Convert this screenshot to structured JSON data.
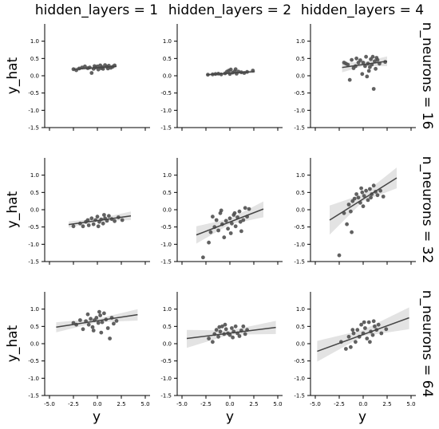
{
  "chart_data": {
    "type": "scatter",
    "layout": "facet-grid",
    "x_label": "y",
    "y_label": "y_hat",
    "column_titles": [
      "hidden_layers = 1",
      "hidden_layers = 2",
      "hidden_layers = 4"
    ],
    "row_titles": [
      "n_neurons = 16",
      "n_neurons = 32",
      "n_neurons = 64"
    ],
    "xlim": [
      -5.5,
      5.5
    ],
    "ylim": [
      -1.5,
      1.5
    ],
    "x_ticks": [
      "-5.0",
      "-2.5",
      "0.0",
      "2.5",
      "5.0"
    ],
    "y_ticks": [
      "-1.5",
      "-1.0",
      "-0.5",
      "0.0",
      "0.5",
      "1.0"
    ],
    "point_color": "#505050",
    "line_color": "#444444",
    "band_color": "#e3e3e3",
    "grid": false,
    "panels": [
      {
        "row": 0,
        "col": 0,
        "regression": {
          "x": [
            -2.5,
            2.0
          ],
          "y": [
            0.19,
            0.27
          ]
        },
        "ci": {
          "x": [
            -2.5,
            0.0,
            2.0
          ],
          "lo": [
            0.14,
            0.21,
            0.22
          ],
          "hi": [
            0.25,
            0.25,
            0.32
          ]
        },
        "points": [
          [
            -2.5,
            0.19
          ],
          [
            -2.2,
            0.16
          ],
          [
            -1.6,
            0.24
          ],
          [
            -1.3,
            0.27
          ],
          [
            -1.0,
            0.22
          ],
          [
            -0.8,
            0.24
          ],
          [
            -0.6,
            0.08
          ],
          [
            -0.4,
            0.2
          ],
          [
            -0.2,
            0.24
          ],
          [
            0.0,
            0.27
          ],
          [
            0.1,
            0.18
          ],
          [
            0.3,
            0.3
          ],
          [
            0.5,
            0.25
          ],
          [
            0.6,
            0.2
          ],
          [
            0.8,
            0.31
          ],
          [
            1.0,
            0.26
          ],
          [
            1.2,
            0.29
          ],
          [
            1.4,
            0.23
          ],
          [
            1.6,
            0.26
          ],
          [
            1.8,
            0.3
          ],
          [
            -1.9,
            0.21
          ],
          [
            0.4,
            0.22
          ],
          [
            -0.3,
            0.28
          ],
          [
            1.1,
            0.21
          ]
        ]
      },
      {
        "row": 0,
        "col": 1,
        "regression": {
          "x": [
            -2.4,
            2.6
          ],
          "y": [
            0.03,
            0.12
          ]
        },
        "ci": {
          "x": [
            -2.4,
            0.0,
            2.6
          ],
          "lo": [
            0.0,
            0.05,
            0.07
          ],
          "hi": [
            0.07,
            0.09,
            0.17
          ]
        },
        "points": [
          [
            -2.3,
            0.03
          ],
          [
            -1.8,
            0.04
          ],
          [
            -1.2,
            0.06
          ],
          [
            -0.9,
            0.04
          ],
          [
            -0.5,
            0.07
          ],
          [
            -0.3,
            0.12
          ],
          [
            -0.1,
            0.15
          ],
          [
            0.1,
            0.18
          ],
          [
            0.3,
            0.09
          ],
          [
            0.5,
            0.13
          ],
          [
            0.7,
            0.06
          ],
          [
            0.9,
            0.12
          ],
          [
            1.2,
            0.1
          ],
          [
            1.5,
            0.08
          ],
          [
            1.8,
            0.11
          ],
          [
            2.4,
            0.15
          ],
          [
            0.0,
            0.05
          ],
          [
            0.6,
            0.19
          ],
          [
            -1.5,
            0.05
          ]
        ]
      },
      {
        "row": 0,
        "col": 2,
        "regression": {
          "x": [
            -2.2,
            2.5
          ],
          "y": [
            0.24,
            0.42
          ]
        },
        "ci": {
          "x": [
            -2.2,
            0.0,
            2.5
          ],
          "lo": [
            0.1,
            0.28,
            0.28
          ],
          "hi": [
            0.38,
            0.4,
            0.56
          ]
        },
        "points": [
          [
            -2.0,
            0.38
          ],
          [
            -1.6,
            0.32
          ],
          [
            -1.4,
            -0.12
          ],
          [
            -1.2,
            0.46
          ],
          [
            -1.0,
            0.22
          ],
          [
            -0.8,
            0.28
          ],
          [
            -0.5,
            0.38
          ],
          [
            -0.3,
            0.45
          ],
          [
            -0.1,
            0.05
          ],
          [
            0.0,
            0.38
          ],
          [
            0.2,
            0.28
          ],
          [
            0.3,
            0.55
          ],
          [
            0.5,
            0.35
          ],
          [
            0.6,
            0.14
          ],
          [
            0.8,
            0.48
          ],
          [
            0.9,
            0.32
          ],
          [
            1.0,
            0.55
          ],
          [
            1.1,
            -0.38
          ],
          [
            1.2,
            0.42
          ],
          [
            1.3,
            0.2
          ],
          [
            1.5,
            0.46
          ],
          [
            1.7,
            0.35
          ],
          [
            0.4,
            -0.02
          ],
          [
            -0.7,
            0.5
          ],
          [
            0.7,
            0.25
          ],
          [
            1.4,
            0.52
          ],
          [
            -1.8,
            0.35
          ],
          [
            2.3,
            0.4
          ]
        ]
      },
      {
        "row": 1,
        "col": 0,
        "regression": {
          "x": [
            -3.0,
            3.5
          ],
          "y": [
            -0.43,
            -0.18
          ]
        },
        "ci": {
          "x": [
            -3.0,
            0.0,
            3.5
          ],
          "lo": [
            -0.52,
            -0.34,
            -0.3
          ],
          "hi": [
            -0.34,
            -0.26,
            -0.05
          ]
        },
        "points": [
          [
            -2.5,
            -0.48
          ],
          [
            -1.8,
            -0.4
          ],
          [
            -1.5,
            -0.48
          ],
          [
            -1.2,
            -0.35
          ],
          [
            -0.9,
            -0.45
          ],
          [
            -0.6,
            -0.25
          ],
          [
            -0.4,
            -0.42
          ],
          [
            -0.2,
            -0.3
          ],
          [
            0.0,
            -0.2
          ],
          [
            0.2,
            -0.35
          ],
          [
            0.4,
            -0.28
          ],
          [
            0.6,
            -0.4
          ],
          [
            0.8,
            -0.25
          ],
          [
            1.0,
            -0.32
          ],
          [
            1.2,
            -0.18
          ],
          [
            1.5,
            -0.27
          ],
          [
            1.8,
            -0.33
          ],
          [
            2.2,
            -0.22
          ],
          [
            2.6,
            -0.3
          ],
          [
            -1.0,
            -0.3
          ],
          [
            0.1,
            -0.48
          ],
          [
            0.7,
            -0.15
          ]
        ]
      },
      {
        "row": 1,
        "col": 1,
        "regression": {
          "x": [
            -3.5,
            3.5
          ],
          "y": [
            -0.73,
            0.02
          ]
        },
        "ci": {
          "x": [
            -3.5,
            0.0,
            3.5
          ],
          "lo": [
            -0.98,
            -0.42,
            -0.22
          ],
          "hi": [
            -0.48,
            -0.26,
            0.24
          ]
        },
        "points": [
          [
            -2.8,
            -1.38
          ],
          [
            -2.0,
            -0.65
          ],
          [
            -1.8,
            -0.2
          ],
          [
            -1.6,
            -0.5
          ],
          [
            -1.4,
            -0.3
          ],
          [
            -1.2,
            -0.6
          ],
          [
            -1.0,
            -0.1
          ],
          [
            -0.8,
            -0.42
          ],
          [
            -0.6,
            -0.8
          ],
          [
            -0.4,
            -0.32
          ],
          [
            -0.2,
            -0.55
          ],
          [
            0.0,
            -0.25
          ],
          [
            0.2,
            -0.4
          ],
          [
            0.4,
            -0.15
          ],
          [
            0.6,
            -0.48
          ],
          [
            0.8,
            -0.22
          ],
          [
            1.0,
            -0.05
          ],
          [
            1.2,
            -0.62
          ],
          [
            1.4,
            -0.3
          ],
          [
            1.6,
            0.05
          ],
          [
            1.8,
            -0.2
          ],
          [
            2.0,
            0.02
          ],
          [
            -2.2,
            -0.95
          ],
          [
            0.1,
            -0.68
          ],
          [
            -0.9,
            -0.02
          ],
          [
            1.1,
            -0.35
          ],
          [
            0.5,
            -0.1
          ]
        ]
      },
      {
        "row": 1,
        "col": 2,
        "regression": {
          "x": [
            -3.5,
            3.5
          ],
          "y": [
            -0.3,
            0.92
          ]
        },
        "ci": {
          "x": [
            -3.5,
            0.0,
            3.5
          ],
          "lo": [
            -0.72,
            0.25,
            0.62
          ],
          "hi": [
            0.12,
            0.45,
            1.22
          ]
        },
        "points": [
          [
            -2.5,
            -1.32
          ],
          [
            -2.0,
            -0.1
          ],
          [
            -1.7,
            -0.42
          ],
          [
            -1.5,
            0.15
          ],
          [
            -1.3,
            -0.05
          ],
          [
            -1.1,
            0.25
          ],
          [
            -0.9,
            0.32
          ],
          [
            -0.7,
            0.45
          ],
          [
            -0.5,
            0.35
          ],
          [
            -0.3,
            0.2
          ],
          [
            -0.1,
            0.5
          ],
          [
            0.1,
            0.4
          ],
          [
            0.3,
            0.55
          ],
          [
            0.5,
            0.28
          ],
          [
            0.7,
            0.6
          ],
          [
            0.9,
            0.45
          ],
          [
            1.1,
            0.7
          ],
          [
            1.3,
            0.52
          ],
          [
            1.5,
            0.42
          ],
          [
            1.8,
            0.55
          ],
          [
            2.1,
            0.38
          ],
          [
            -1.2,
            -0.65
          ],
          [
            0.0,
            0.1
          ],
          [
            0.8,
            0.35
          ],
          [
            -0.2,
            0.62
          ]
        ]
      },
      {
        "row": 2,
        "col": 0,
        "regression": {
          "x": [
            -4.3,
            4.2
          ],
          "y": [
            0.48,
            0.84
          ]
        },
        "ci": {
          "x": [
            -4.3,
            0.0,
            4.2
          ],
          "lo": [
            0.33,
            0.62,
            0.67
          ],
          "hi": [
            0.62,
            0.72,
            1.0
          ]
        },
        "points": [
          [
            -2.5,
            0.6
          ],
          [
            -2.2,
            0.55
          ],
          [
            -1.8,
            0.68
          ],
          [
            -1.5,
            0.42
          ],
          [
            -1.2,
            0.65
          ],
          [
            -0.9,
            0.55
          ],
          [
            -0.7,
            0.72
          ],
          [
            -0.5,
            0.48
          ],
          [
            -0.3,
            0.68
          ],
          [
            -0.1,
            0.75
          ],
          [
            0.1,
            0.6
          ],
          [
            0.3,
            0.82
          ],
          [
            0.5,
            0.62
          ],
          [
            0.7,
            0.88
          ],
          [
            0.9,
            0.7
          ],
          [
            1.1,
            0.45
          ],
          [
            1.3,
            0.15
          ],
          [
            1.5,
            0.75
          ],
          [
            1.7,
            0.58
          ],
          [
            2.0,
            0.66
          ],
          [
            -1.0,
            0.85
          ],
          [
            0.2,
            0.92
          ],
          [
            0.4,
            0.32
          ],
          [
            -0.4,
            0.38
          ]
        ]
      },
      {
        "row": 2,
        "col": 1,
        "regression": {
          "x": [
            -4.5,
            4.8
          ],
          "y": [
            0.15,
            0.47
          ]
        },
        "ci": {
          "x": [
            -4.5,
            0.0,
            4.8
          ],
          "lo": [
            -0.12,
            0.26,
            0.28
          ],
          "hi": [
            0.4,
            0.38,
            0.66
          ]
        },
        "points": [
          [
            -2.2,
            0.15
          ],
          [
            -1.8,
            0.05
          ],
          [
            -1.6,
            0.28
          ],
          [
            -1.4,
            0.4
          ],
          [
            -1.2,
            0.2
          ],
          [
            -1.0,
            0.35
          ],
          [
            -0.8,
            0.5
          ],
          [
            -0.6,
            0.28
          ],
          [
            -0.4,
            0.42
          ],
          [
            -0.2,
            0.3
          ],
          [
            0.0,
            0.25
          ],
          [
            0.2,
            0.45
          ],
          [
            0.4,
            0.35
          ],
          [
            0.6,
            0.5
          ],
          [
            0.8,
            0.3
          ],
          [
            1.0,
            0.22
          ],
          [
            1.2,
            0.38
          ],
          [
            1.4,
            0.5
          ],
          [
            1.6,
            0.28
          ],
          [
            -0.5,
            0.55
          ],
          [
            0.3,
            0.18
          ],
          [
            1.8,
            0.4
          ],
          [
            -1.1,
            0.48
          ]
        ]
      },
      {
        "row": 2,
        "col": 2,
        "regression": {
          "x": [
            -4.8,
            4.8
          ],
          "y": [
            -0.22,
            0.75
          ]
        },
        "ci": {
          "x": [
            -4.8,
            0.0,
            4.8
          ],
          "lo": [
            -0.52,
            0.22,
            0.42
          ],
          "hi": [
            0.08,
            0.4,
            1.05
          ]
        },
        "points": [
          [
            -2.3,
            0.05
          ],
          [
            -1.8,
            -0.15
          ],
          [
            -1.5,
            0.2
          ],
          [
            -1.3,
            -0.1
          ],
          [
            -1.0,
            0.3
          ],
          [
            -0.8,
            0.05
          ],
          [
            -0.6,
            0.4
          ],
          [
            -0.4,
            0.2
          ],
          [
            -0.2,
            0.55
          ],
          [
            0.0,
            0.3
          ],
          [
            0.2,
            0.45
          ],
          [
            0.4,
            0.15
          ],
          [
            0.6,
            0.62
          ],
          [
            0.8,
            0.35
          ],
          [
            1.0,
            0.25
          ],
          [
            1.2,
            0.5
          ],
          [
            1.4,
            0.4
          ],
          [
            1.6,
            0.55
          ],
          [
            1.9,
            0.3
          ],
          [
            0.1,
            0.62
          ],
          [
            -1.1,
            0.4
          ],
          [
            0.7,
            0.05
          ],
          [
            1.1,
            0.65
          ],
          [
            2.4,
            0.42
          ]
        ]
      }
    ]
  }
}
